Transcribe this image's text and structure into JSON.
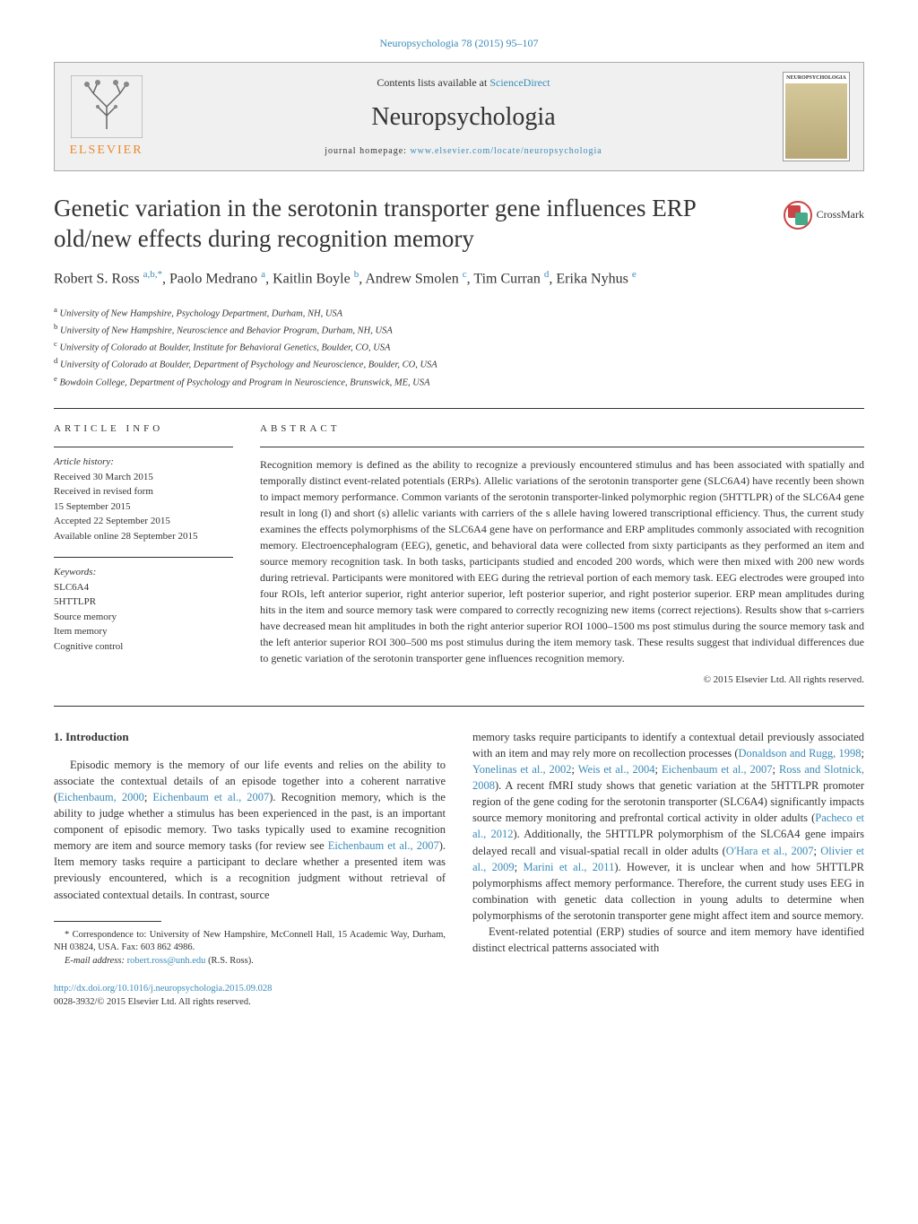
{
  "citation": "Neuropsychologia 78 (2015) 95–107",
  "header": {
    "contents_prefix": "Contents lists available at ",
    "contents_link": "ScienceDirect",
    "journal": "Neuropsychologia",
    "homepage_prefix": "journal homepage: ",
    "homepage_url": "www.elsevier.com/locate/neuropsychologia",
    "publisher": "ELSEVIER",
    "cover_title": "NEUROPSYCHOLOGIA"
  },
  "crossmark": "CrossMark",
  "title": "Genetic variation in the serotonin transporter gene influences ERP old/new effects during recognition memory",
  "authors_html": "Robert S. Ross <sup>a,b,*</sup>, Paolo Medrano <sup>a</sup>, Kaitlin Boyle <sup>b</sup>, Andrew Smolen <sup>c</sup>, Tim Curran <sup>d</sup>, Erika Nyhus <sup>e</sup>",
  "affiliations": [
    "a University of New Hampshire, Psychology Department, Durham, NH, USA",
    "b University of New Hampshire, Neuroscience and Behavior Program, Durham, NH, USA",
    "c University of Colorado at Boulder, Institute for Behavioral Genetics, Boulder, CO, USA",
    "d University of Colorado at Boulder, Department of Psychology and Neuroscience, Boulder, CO, USA",
    "e Bowdoin College, Department of Psychology and Program in Neuroscience, Brunswick, ME, USA"
  ],
  "article_info": {
    "heading": "ARTICLE INFO",
    "history_title": "Article history:",
    "history": [
      "Received 30 March 2015",
      "Received in revised form",
      "15 September 2015",
      "Accepted 22 September 2015",
      "Available online 28 September 2015"
    ],
    "keywords_title": "Keywords:",
    "keywords": [
      "SLC6A4",
      "5HTTLPR",
      "Source memory",
      "Item memory",
      "Cognitive control"
    ]
  },
  "abstract": {
    "heading": "ABSTRACT",
    "text": "Recognition memory is defined as the ability to recognize a previously encountered stimulus and has been associated with spatially and temporally distinct event-related potentials (ERPs). Allelic variations of the serotonin transporter gene (SLC6A4) have recently been shown to impact memory performance. Common variants of the serotonin transporter-linked polymorphic region (5HTTLPR) of the SLC6A4 gene result in long (l) and short (s) allelic variants with carriers of the s allele having lowered transcriptional efficiency. Thus, the current study examines the effects polymorphisms of the SLC6A4 gene have on performance and ERP amplitudes commonly associated with recognition memory. Electroencephalogram (EEG), genetic, and behavioral data were collected from sixty participants as they performed an item and source memory recognition task. In both tasks, participants studied and encoded 200 words, which were then mixed with 200 new words during retrieval. Participants were monitored with EEG during the retrieval portion of each memory task. EEG electrodes were grouped into four ROIs, left anterior superior, right anterior superior, left posterior superior, and right posterior superior. ERP mean amplitudes during hits in the item and source memory task were compared to correctly recognizing new items (correct rejections). Results show that s-carriers have decreased mean hit amplitudes in both the right anterior superior ROI 1000–1500 ms post stimulus during the source memory task and the left anterior superior ROI 300–500 ms post stimulus during the item memory task. These results suggest that individual differences due to genetic variation of the serotonin transporter gene influences recognition memory.",
    "copyright": "© 2015 Elsevier Ltd. All rights reserved."
  },
  "body": {
    "section_num": "1.",
    "section_title": "Introduction",
    "col1_p1_a": "Episodic memory is the memory of our life events and relies on the ability to associate the contextual details of an episode together into a coherent narrative (",
    "ref1": "Eichenbaum, 2000",
    "col1_p1_b": "; ",
    "ref2": "Eichenbaum et al., 2007",
    "col1_p1_c": "). Recognition memory, which is the ability to judge whether a stimulus has been experienced in the past, is an important component of episodic memory. Two tasks typically used to examine recognition memory are item and source memory tasks (for review see ",
    "ref3": "Eichenbaum et al., 2007",
    "col1_p1_d": "). Item memory tasks require a participant to declare whether a presented item was previously encountered, which is a recognition judgment without retrieval of associated contextual details. In contrast, source",
    "col2_p1_a": "memory tasks require participants to identify a contextual detail previously associated with an item and may rely more on recollection processes (",
    "ref4": "Donaldson and Rugg, 1998",
    "col2_p1_b": "; ",
    "ref5": "Yonelinas et al., 2002",
    "col2_p1_c": "; ",
    "ref6": "Weis et al., 2004",
    "col2_p1_d": "; ",
    "ref7": "Eichenbaum et al., 2007",
    "col2_p1_e": "; ",
    "ref8": "Ross and Slotnick, 2008",
    "col2_p1_f": "). A recent fMRI study shows that genetic variation at the 5HTTLPR promoter region of the gene coding for the serotonin transporter (SLC6A4) significantly impacts source memory monitoring and prefrontal cortical activity in older adults (",
    "ref9": "Pacheco et al., 2012",
    "col2_p1_g": "). Additionally, the 5HTTLPR polymorphism of the SLC6A4 gene impairs delayed recall and visual-spatial recall in older adults (",
    "ref10": "O'Hara et al., 2007",
    "col2_p1_h": "; ",
    "ref11": "Olivier et al., 2009",
    "col2_p1_i": "; ",
    "ref12": "Marini et al., 2011",
    "col2_p1_j": "). However, it is unclear when and how 5HTTLPR polymorphisms affect memory performance. Therefore, the current study uses EEG in combination with genetic data collection in young adults to determine when polymorphisms of the serotonin transporter gene might affect item and source memory.",
    "col2_p2": "Event-related potential (ERP) studies of source and item memory have identified distinct electrical patterns associated with"
  },
  "footnotes": {
    "corr": "* Correspondence to: University of New Hampshire, McConnell Hall, 15 Academic Way, Durham, NH 03824, USA. Fax: 603 862 4986.",
    "email_label": "E-mail address: ",
    "email": "robert.ross@unh.edu",
    "email_suffix": " (R.S. Ross)."
  },
  "doi": {
    "url": "http://dx.doi.org/10.1016/j.neuropsychologia.2015.09.028",
    "issn": "0028-3932/© 2015 Elsevier Ltd. All rights reserved."
  }
}
